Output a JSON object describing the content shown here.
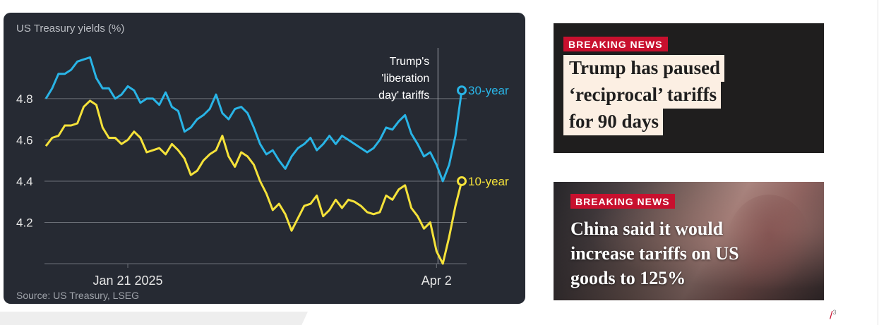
{
  "chart_data": {
    "type": "line",
    "title": "US Treasury yields (%)",
    "source": "Source: US Treasury, LSEG",
    "x_tick_labels": [
      "Jan 21 2025",
      "Apr 2"
    ],
    "y_ticks": [
      "4.8",
      "4.6",
      "4.4",
      "4.2"
    ],
    "ylim": [
      4.0,
      5.08
    ],
    "grid": "horizontal",
    "annotation": [
      "Trump's",
      "'liberation",
      "day' tariffs"
    ],
    "colors": {
      "background": "#262a33",
      "thirty_year": "#29b4e6",
      "ten_year": "#f5e23a",
      "grid": "#6c7078",
      "text": "#e6e6e6"
    },
    "series": [
      {
        "name": "30-year",
        "values": [
          4.8,
          4.85,
          4.92,
          4.92,
          4.94,
          4.98,
          4.99,
          5.0,
          4.9,
          4.85,
          4.85,
          4.8,
          4.82,
          4.86,
          4.84,
          4.78,
          4.8,
          4.8,
          4.77,
          4.83,
          4.76,
          4.74,
          4.64,
          4.66,
          4.7,
          4.72,
          4.75,
          4.82,
          4.73,
          4.7,
          4.75,
          4.76,
          4.73,
          4.66,
          4.58,
          4.53,
          4.55,
          4.5,
          4.46,
          4.52,
          4.56,
          4.58,
          4.61,
          4.55,
          4.58,
          4.62,
          4.58,
          4.62,
          4.6,
          4.58,
          4.56,
          4.54,
          4.56,
          4.6,
          4.66,
          4.65,
          4.69,
          4.72,
          4.63,
          4.58,
          4.52,
          4.54,
          4.48,
          4.4,
          4.48,
          4.62,
          4.84
        ]
      },
      {
        "name": "10-year",
        "values": [
          4.57,
          4.61,
          4.62,
          4.67,
          4.67,
          4.68,
          4.76,
          4.79,
          4.77,
          4.66,
          4.61,
          4.61,
          4.58,
          4.6,
          4.64,
          4.61,
          4.54,
          4.55,
          4.56,
          4.53,
          4.58,
          4.55,
          4.51,
          4.43,
          4.45,
          4.5,
          4.53,
          4.55,
          4.62,
          4.52,
          4.47,
          4.54,
          4.52,
          4.48,
          4.4,
          4.34,
          4.26,
          4.29,
          4.24,
          4.16,
          4.22,
          4.28,
          4.29,
          4.33,
          4.23,
          4.26,
          4.31,
          4.27,
          4.31,
          4.3,
          4.28,
          4.25,
          4.24,
          4.25,
          4.33,
          4.31,
          4.36,
          4.38,
          4.27,
          4.23,
          4.17,
          4.2,
          4.06,
          4.0,
          4.13,
          4.28,
          4.4
        ]
      }
    ]
  },
  "news": [
    {
      "badge": "BREAKING NEWS",
      "lines": [
        "Trump has paused",
        "‘reciprocal’ tariffs",
        "for 90 days"
      ]
    },
    {
      "badge": "BREAKING NEWS",
      "text": "China said it would increase tariffs on US goods to 125%"
    }
  ],
  "page_number": {
    "slash": "/",
    "num": "3"
  }
}
